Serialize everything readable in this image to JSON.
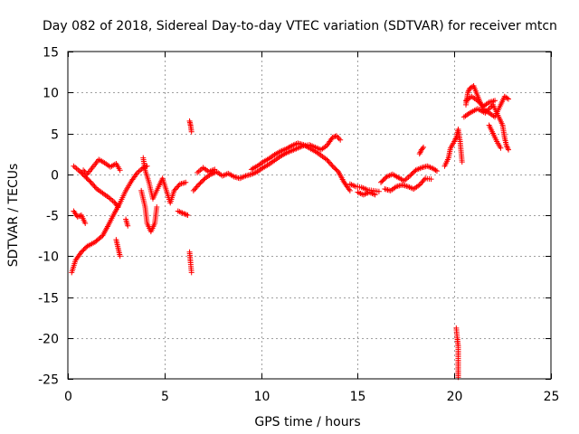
{
  "chart_data": {
    "type": "scatter",
    "title": "Day 082 of 2018, Sidereal Day-to-day VTEC variation (SDTVAR) for receiver mtcn",
    "xlabel": "GPS time / hours",
    "ylabel": "SDTVAR / TECUs",
    "xlim": [
      0,
      25
    ],
    "ylim": [
      -25,
      15
    ],
    "xticks": [
      0,
      5,
      10,
      15,
      20,
      25
    ],
    "yticks": [
      -25,
      -20,
      -15,
      -10,
      -5,
      0,
      5,
      10,
      15
    ],
    "grid": true,
    "marker": "plus",
    "color": "#ff0000",
    "series": [
      {
        "name": "SDTVAR",
        "segments": [
          [
            [
              0.2,
              -12
            ],
            [
              0.4,
              -10.5
            ],
            [
              0.7,
              -9.5
            ],
            [
              1.0,
              -8.8
            ],
            [
              1.4,
              -8.3
            ],
            [
              1.8,
              -7.5
            ],
            [
              2.1,
              -6.2
            ],
            [
              2.4,
              -4.8
            ],
            [
              2.7,
              -3.5
            ],
            [
              3.0,
              -2.0
            ],
            [
              3.3,
              -0.8
            ],
            [
              3.6,
              0.2
            ],
            [
              3.9,
              0.8
            ],
            [
              4.1,
              1.0
            ]
          ],
          [
            [
              0.3,
              -4.5
            ],
            [
              0.5,
              -5.2
            ],
            [
              0.7,
              -5.0
            ],
            [
              0.9,
              -6.0
            ]
          ],
          [
            [
              0.3,
              1.0
            ],
            [
              0.6,
              0.4
            ],
            [
              0.9,
              -0.3
            ],
            [
              1.2,
              -1.0
            ],
            [
              1.5,
              -1.8
            ],
            [
              1.8,
              -2.3
            ],
            [
              2.1,
              -2.8
            ],
            [
              2.4,
              -3.4
            ],
            [
              2.6,
              -4.0
            ]
          ],
          [
            [
              0.8,
              0.5
            ],
            [
              1.0,
              0.0
            ],
            [
              1.3,
              0.9
            ],
            [
              1.6,
              1.8
            ],
            [
              1.9,
              1.4
            ],
            [
              2.2,
              0.9
            ],
            [
              2.5,
              1.3
            ],
            [
              2.7,
              0.5
            ]
          ],
          [
            [
              2.5,
              -8.0
            ],
            [
              2.6,
              -9.0
            ],
            [
              2.7,
              -10.0
            ]
          ],
          [
            [
              3.0,
              -5.5
            ],
            [
              3.1,
              -6.3
            ]
          ],
          [
            [
              3.8,
              -2.0
            ],
            [
              4.0,
              -4.0
            ],
            [
              4.1,
              -6.0
            ],
            [
              4.3,
              -7.0
            ],
            [
              4.5,
              -6.0
            ],
            [
              4.6,
              -4.0
            ]
          ],
          [
            [
              3.9,
              2.0
            ],
            [
              4.0,
              0.5
            ],
            [
              4.2,
              -1.0
            ],
            [
              4.4,
              -3.0
            ],
            [
              4.7,
              -1.5
            ],
            [
              4.9,
              -0.5
            ],
            [
              5.1,
              -2.0
            ],
            [
              5.3,
              -3.5
            ],
            [
              5.5,
              -2.0
            ],
            [
              5.8,
              -1.2
            ],
            [
              6.1,
              -1.0
            ]
          ],
          [
            [
              5.7,
              -4.5
            ],
            [
              6.0,
              -4.8
            ],
            [
              6.2,
              -5.0
            ]
          ],
          [
            [
              6.3,
              6.5
            ],
            [
              6.35,
              6.0
            ],
            [
              6.4,
              5.2
            ]
          ],
          [
            [
              6.3,
              -9.5
            ],
            [
              6.35,
              -10.8
            ],
            [
              6.4,
              -12.0
            ]
          ],
          [
            [
              6.5,
              -2.0
            ],
            [
              6.8,
              -1.2
            ],
            [
              7.1,
              -0.5
            ],
            [
              7.4,
              0.0
            ],
            [
              7.7,
              0.3
            ],
            [
              8.0,
              -0.2
            ],
            [
              8.3,
              0.1
            ],
            [
              8.6,
              -0.3
            ],
            [
              8.9,
              -0.5
            ],
            [
              9.2,
              -0.2
            ],
            [
              9.5,
              0.0
            ],
            [
              9.8,
              0.3
            ],
            [
              10.1,
              0.8
            ],
            [
              10.4,
              1.2
            ],
            [
              10.7,
              1.7
            ],
            [
              11.0,
              2.2
            ],
            [
              11.3,
              2.6
            ],
            [
              11.6,
              2.9
            ],
            [
              11.9,
              3.2
            ],
            [
              12.2,
              3.5
            ],
            [
              12.5,
              3.6
            ],
            [
              12.8,
              3.3
            ],
            [
              13.1,
              3.0
            ],
            [
              13.4,
              3.5
            ],
            [
              13.7,
              4.5
            ],
            [
              13.9,
              4.7
            ],
            [
              14.1,
              4.2
            ]
          ],
          [
            [
              6.7,
              0.2
            ],
            [
              7.0,
              0.8
            ],
            [
              7.3,
              0.3
            ],
            [
              7.6,
              0.6
            ]
          ],
          [
            [
              9.5,
              0.6
            ],
            [
              9.8,
              1.0
            ],
            [
              10.1,
              1.5
            ],
            [
              10.4,
              1.9
            ],
            [
              10.7,
              2.4
            ],
            [
              11.0,
              2.8
            ],
            [
              11.3,
              3.1
            ],
            [
              11.6,
              3.5
            ],
            [
              11.9,
              3.8
            ],
            [
              12.2,
              3.6
            ],
            [
              12.5,
              3.2
            ],
            [
              12.8,
              2.8
            ],
            [
              13.1,
              2.3
            ],
            [
              13.4,
              1.8
            ],
            [
              13.7,
              1.0
            ],
            [
              14.0,
              0.3
            ],
            [
              14.3,
              -1.0
            ],
            [
              14.6,
              -2.0
            ]
          ],
          [
            [
              14.6,
              -1.2
            ],
            [
              14.9,
              -1.5
            ],
            [
              15.2,
              -1.6
            ],
            [
              15.5,
              -1.9
            ],
            [
              15.8,
              -2.0
            ],
            [
              16.1,
              -2.1
            ]
          ],
          [
            [
              15.0,
              -2.2
            ],
            [
              15.3,
              -2.5
            ],
            [
              15.6,
              -2.2
            ],
            [
              15.9,
              -2.5
            ]
          ],
          [
            [
              16.2,
              -1.0
            ],
            [
              16.5,
              -0.3
            ],
            [
              16.8,
              0.0
            ],
            [
              17.1,
              -0.4
            ],
            [
              17.4,
              -0.8
            ],
            [
              17.7,
              -0.2
            ],
            [
              18.0,
              0.5
            ],
            [
              18.3,
              0.8
            ],
            [
              18.6,
              1.0
            ],
            [
              18.9,
              0.7
            ],
            [
              19.1,
              0.4
            ]
          ],
          [
            [
              16.4,
              -1.8
            ],
            [
              16.7,
              -2.0
            ],
            [
              17.0,
              -1.5
            ],
            [
              17.3,
              -1.3
            ],
            [
              17.6,
              -1.5
            ],
            [
              17.9,
              -1.8
            ],
            [
              18.2,
              -1.3
            ],
            [
              18.5,
              -0.5
            ],
            [
              18.8,
              -0.6
            ]
          ],
          [
            [
              18.2,
              2.5
            ],
            [
              18.3,
              3.0
            ],
            [
              18.4,
              3.3
            ]
          ],
          [
            [
              19.5,
              1.0
            ],
            [
              19.7,
              2.0
            ],
            [
              19.8,
              3.2
            ],
            [
              20.0,
              4.0
            ],
            [
              20.1,
              4.5
            ],
            [
              20.2,
              5.5
            ],
            [
              20.3,
              4.0
            ],
            [
              20.4,
              1.5
            ]
          ],
          [
            [
              20.1,
              -18.8
            ],
            [
              20.15,
              -20.0
            ],
            [
              20.2,
              -21.0
            ],
            [
              20.2,
              -22.5
            ],
            [
              20.2,
              -24.0
            ],
            [
              20.2,
              -24.8
            ]
          ],
          [
            [
              20.6,
              8.5
            ],
            [
              20.7,
              10.0
            ],
            [
              20.8,
              10.5
            ],
            [
              21.0,
              10.8
            ],
            [
              21.1,
              10.2
            ],
            [
              21.3,
              9.0
            ],
            [
              21.5,
              8.0
            ],
            [
              21.8,
              7.5
            ],
            [
              22.1,
              7.0
            ],
            [
              22.4,
              8.5
            ],
            [
              22.6,
              9.5
            ],
            [
              22.8,
              9.2
            ]
          ],
          [
            [
              20.5,
              7.0
            ],
            [
              20.8,
              7.5
            ],
            [
              21.2,
              8.0
            ],
            [
              21.6,
              7.5
            ],
            [
              22.0,
              8.5
            ],
            [
              22.3,
              7.0
            ],
            [
              22.5,
              6.0
            ],
            [
              22.6,
              4.5
            ],
            [
              22.7,
              3.5
            ],
            [
              22.8,
              3.0
            ]
          ],
          [
            [
              20.6,
              9.0
            ],
            [
              20.9,
              9.5
            ],
            [
              21.2,
              9.0
            ],
            [
              21.5,
              8.3
            ],
            [
              21.8,
              8.8
            ],
            [
              22.1,
              9.0
            ]
          ],
          [
            [
              21.8,
              6.0
            ],
            [
              22.0,
              5.0
            ],
            [
              22.2,
              4.0
            ],
            [
              22.4,
              3.2
            ]
          ]
        ]
      }
    ]
  }
}
